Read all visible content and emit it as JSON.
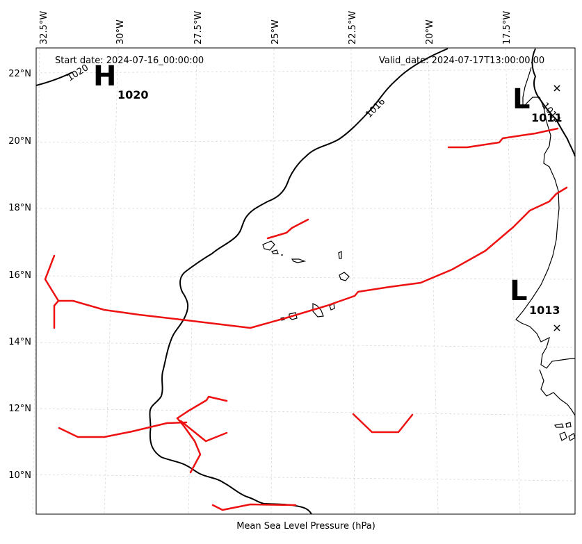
{
  "header": {
    "start_date": "Start date: 2024-07-16_00:00:00",
    "valid_date": "Valid_date: 2024-07-17T13:00:00.00"
  },
  "caption": "Mean Sea Level Pressure (hPa)",
  "longitude_ticks": [
    "32.5°W",
    "30°W",
    "27.5°W",
    "25°W",
    "22.5°W",
    "20°W",
    "17.5°W"
  ],
  "latitude_ticks": [
    "22°N",
    "20°N",
    "18°N",
    "16°N",
    "14°N",
    "12°N",
    "10°N"
  ],
  "pressure_systems": [
    {
      "letter": "H",
      "value": "1020"
    },
    {
      "letter": "L",
      "value": "1011"
    },
    {
      "letter": "L",
      "value": "1013"
    }
  ],
  "contour_labels": [
    "1020",
    "1016",
    "1012"
  ],
  "colors": {
    "trough_lines": "#ee1111",
    "isobars": "#000000",
    "coastline": "#000000",
    "gridlines": "#d9d9d9"
  }
}
